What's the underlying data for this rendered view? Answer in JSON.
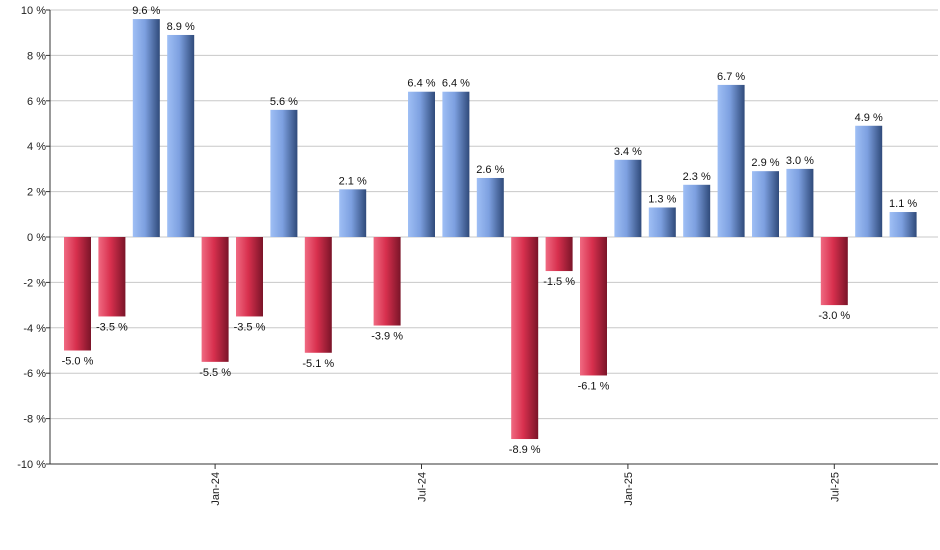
{
  "chart_data": {
    "type": "bar",
    "ylim": [
      -10,
      10
    ],
    "y_ticks": [
      10,
      8,
      6,
      4,
      2,
      0,
      -2,
      -4,
      -6,
      -8,
      -10
    ],
    "y_tick_labels": [
      "10 %",
      "8 %",
      "6 %",
      "4 %",
      "2 %",
      "0 %",
      "-2 %",
      "-4 %",
      "-6 %",
      "-8 %",
      "-10 %"
    ],
    "grid": true,
    "x_tick_labels": [
      {
        "label": "Jan-24",
        "index": 4
      },
      {
        "label": "Jul-24",
        "index": 10
      },
      {
        "label": "Jan-25",
        "index": 16
      },
      {
        "label": "Jul-25",
        "index": 22
      }
    ],
    "values": [
      -5.0,
      -3.5,
      9.6,
      8.9,
      -5.5,
      -3.5,
      5.6,
      -5.1,
      2.1,
      -3.9,
      6.4,
      6.4,
      2.6,
      -8.9,
      -1.5,
      -6.1,
      3.4,
      1.3,
      2.3,
      6.7,
      2.9,
      3.0,
      -3.0,
      4.9,
      1.1
    ],
    "labels": [
      "-5.0 %",
      "-3.5 %",
      "9.6 %",
      "8.9 %",
      "-5.5 %",
      "-3.5 %",
      "5.6 %",
      "-5.1 %",
      "2.1 %",
      "-3.9 %",
      "6.4 %",
      "6.4 %",
      "2.6 %",
      "-8.9 %",
      "-1.5 %",
      "-6.1 %",
      "3.4 %",
      "1.3 %",
      "2.3 %",
      "6.7 %",
      "2.9 %",
      "3.0 %",
      "-3.0 %",
      "4.9 %",
      "1.1 %"
    ],
    "colors": {
      "positive": "#7da0e0",
      "positive_dark": "#2f4a7a",
      "negative": "#e0405c",
      "negative_dark": "#7a1428",
      "grid": "#c8c8c8",
      "axis": "#333333"
    }
  }
}
